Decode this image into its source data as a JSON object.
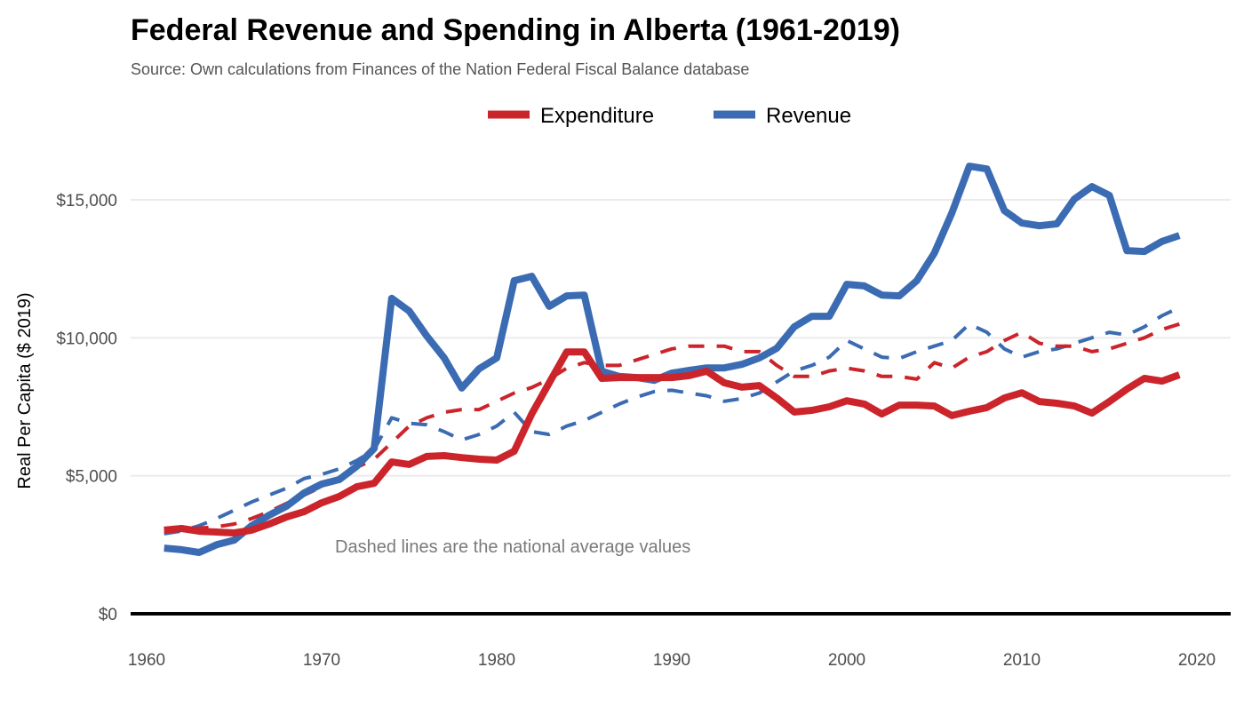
{
  "chart_data": {
    "type": "line",
    "title": "Federal Revenue and Spending in Alberta (1961-2019)",
    "subtitle": "Source: Own calculations from Finances of the Nation Federal Fiscal Balance database",
    "xlabel": "",
    "ylabel": "Real Per Capita ($ 2019)",
    "xlim": [
      1960,
      2020
    ],
    "ylim": [
      0,
      17500
    ],
    "x_ticks": [
      1960,
      1970,
      1980,
      1990,
      2000,
      2010,
      2020
    ],
    "x_tick_labels": [
      "1960",
      "1970",
      "1980",
      "1990",
      "2000",
      "2010",
      "2020"
    ],
    "y_ticks": [
      0,
      5000,
      10000,
      15000
    ],
    "y_tick_labels": [
      "$0",
      "$5,000",
      "$10,000",
      "$15,000"
    ],
    "grid": true,
    "legend_position": "top",
    "legend": [
      {
        "label": "Expenditure",
        "color": "#cb242b"
      },
      {
        "label": "Revenue",
        "color": "#3b6bb2"
      }
    ],
    "annotation": "Dashed lines are the national average values",
    "x": [
      1961,
      1962,
      1963,
      1964,
      1965,
      1966,
      1967,
      1968,
      1969,
      1970,
      1971,
      1972,
      1973,
      1974,
      1975,
      1976,
      1977,
      1978,
      1979,
      1980,
      1981,
      1982,
      1983,
      1984,
      1985,
      1986,
      1987,
      1988,
      1989,
      1990,
      1991,
      1992,
      1993,
      1994,
      1995,
      1996,
      1997,
      1998,
      1999,
      2000,
      2001,
      2002,
      2003,
      2004,
      2005,
      2006,
      2007,
      2008,
      2009,
      2010,
      2011,
      2012,
      2013,
      2014,
      2015,
      2016,
      2017,
      2018,
      2019
    ],
    "series": [
      {
        "name": "Revenue (Alberta)",
        "color": "#3b6bb2",
        "style": "solid",
        "values": [
          2380,
          2320,
          2220,
          2500,
          2670,
          3190,
          3570,
          3900,
          4380,
          4700,
          4860,
          5340,
          5990,
          11430,
          10970,
          10070,
          9270,
          8180,
          8880,
          9270,
          12070,
          12230,
          11140,
          11520,
          11550,
          8790,
          8600,
          8560,
          8460,
          8720,
          8820,
          8910,
          8910,
          9040,
          9270,
          9620,
          10400,
          10780,
          10780,
          11940,
          11880,
          11550,
          11520,
          12070,
          13070,
          14520,
          16220,
          16120,
          14610,
          14160,
          14060,
          14130,
          15030,
          15480,
          15160,
          13160,
          13130,
          13490,
          13710
        ]
      },
      {
        "name": "Expenditure (Alberta)",
        "color": "#cb242b",
        "style": "solid",
        "values": [
          3030,
          3090,
          2990,
          2960,
          2930,
          3030,
          3250,
          3510,
          3700,
          4020,
          4250,
          4600,
          4730,
          5500,
          5410,
          5700,
          5730,
          5660,
          5600,
          5570,
          5890,
          7240,
          8370,
          9490,
          9490,
          8530,
          8560,
          8560,
          8560,
          8560,
          8630,
          8790,
          8370,
          8210,
          8270,
          7820,
          7310,
          7370,
          7500,
          7720,
          7600,
          7240,
          7560,
          7560,
          7530,
          7180,
          7340,
          7470,
          7820,
          8010,
          7690,
          7630,
          7530,
          7270,
          7690,
          8140,
          8530,
          8430,
          8660
        ]
      },
      {
        "name": "Revenue (National average)",
        "color": "#3b6bb2",
        "style": "dashed",
        "values": [
          2900,
          3000,
          3190,
          3450,
          3750,
          4050,
          4300,
          4550,
          4900,
          5050,
          5250,
          5550,
          5950,
          7100,
          6900,
          6850,
          6600,
          6300,
          6500,
          6800,
          7300,
          6600,
          6500,
          6800,
          7000,
          7300,
          7600,
          7850,
          8050,
          8100,
          8000,
          7900,
          7700,
          7800,
          8000,
          8400,
          8800,
          9000,
          9300,
          9900,
          9600,
          9300,
          9250,
          9500,
          9700,
          9900,
          10500,
          10200,
          9600,
          9300,
          9500,
          9600,
          9800,
          10000,
          10200,
          10100,
          10400,
          10800,
          11100
        ]
      },
      {
        "name": "Expenditure (National average)",
        "color": "#cb242b",
        "style": "dashed",
        "values": [
          3050,
          3100,
          3100,
          3150,
          3250,
          3450,
          3700,
          4000,
          4300,
          4600,
          4900,
          5300,
          5600,
          6200,
          6800,
          7100,
          7300,
          7400,
          7400,
          7700,
          8000,
          8200,
          8500,
          8900,
          9100,
          9000,
          9000,
          9200,
          9400,
          9600,
          9700,
          9700,
          9700,
          9500,
          9500,
          9000,
          8600,
          8600,
          8800,
          8900,
          8800,
          8600,
          8600,
          8500,
          9100,
          8900,
          9300,
          9500,
          9900,
          10200,
          9800,
          9700,
          9700,
          9500,
          9600,
          9800,
          10000,
          10300,
          10500
        ]
      }
    ]
  }
}
